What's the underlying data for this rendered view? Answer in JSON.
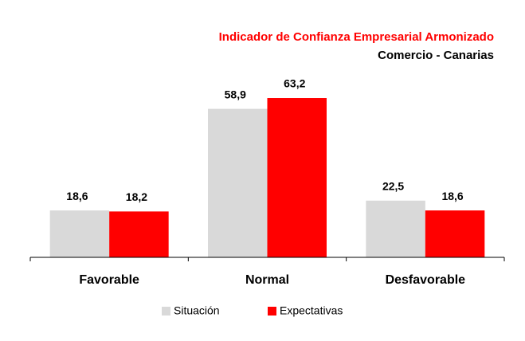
{
  "chart_data": {
    "type": "bar",
    "title": "Indicador de Confianza Empresarial Armonizado",
    "subtitle": "Comercio - Canarias",
    "categories": [
      "Favorable",
      "Normal",
      "Desfavorable"
    ],
    "series": [
      {
        "name": "Situación",
        "color": "#d9d9d9",
        "values": [
          18.6,
          58.9,
          22.5
        ],
        "value_labels": [
          "18,6",
          "58,9",
          "22,5"
        ]
      },
      {
        "name": "Expectativas",
        "color": "#ff0000",
        "values": [
          18.2,
          63.2,
          18.6
        ],
        "value_labels": [
          "18,2",
          "63,2",
          "18,6"
        ]
      }
    ],
    "ylim": [
      0,
      70
    ],
    "legend": "bottom"
  }
}
